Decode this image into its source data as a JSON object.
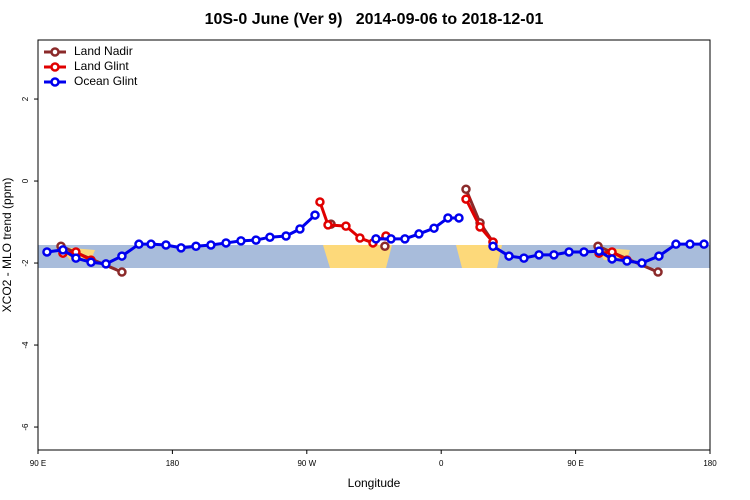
{
  "chart_data": {
    "type": "line",
    "title": "10S-0 June (Ver 9)   2014-09-06 to 2018-12-01",
    "x_label": "Longitude",
    "y_label": "XCO2 - MLO trend (ppm)",
    "xlim": [
      90,
      540
    ],
    "xticks": [
      {
        "value": 90,
        "label": "90 E"
      },
      {
        "value": 180,
        "label": "180"
      },
      {
        "value": 270,
        "label": "90 W"
      },
      {
        "value": 360,
        "label": "0"
      },
      {
        "value": 450,
        "label": "90 E"
      },
      {
        "value": 540,
        "label": "180"
      }
    ],
    "ylim": [
      -6.56,
      3.44
    ],
    "yticks": [
      -6,
      -4,
      -2,
      0,
      2
    ],
    "legend": "top-left",
    "series": [
      {
        "name": "Land Nadir",
        "color": "#8b2a2a",
        "x": [
          105.4,
          146.2,
          null,
          286.2,
          null,
          322.3,
          null,
          376.6,
          386.0,
          394.7,
          null,
          465.0,
          505.2
        ],
        "values": [
          -1.59,
          -2.22,
          null,
          -1.05,
          null,
          -1.59,
          null,
          -0.2,
          -1.02,
          -1.49,
          null,
          -1.59,
          -2.22
        ]
      },
      {
        "name": "Land Glint",
        "color": "#e00000",
        "x": [
          106.7,
          115.4,
          125.5,
          null,
          278.8,
          284.2,
          296.2,
          305.6,
          314.3,
          323.0,
          null,
          376.6,
          386.0,
          394.7,
          null,
          465.7,
          474.4,
          484.4
        ],
        "values": [
          -1.76,
          -1.73,
          -1.93,
          null,
          -0.51,
          -1.07,
          -1.1,
          -1.39,
          -1.51,
          -1.34,
          null,
          -0.44,
          -1.12,
          -1.49,
          null,
          -1.76,
          -1.73,
          -1.93
        ]
      },
      {
        "name": "Ocean Glint",
        "color": "#0000ee",
        "x": [
          96.0,
          106.7,
          115.4,
          125.5,
          135.5,
          146.2,
          157.6,
          165.7,
          175.7,
          185.8,
          195.8,
          205.8,
          215.9,
          225.9,
          236.0,
          245.3,
          256.1,
          265.4,
          275.5,
          null,
          316.3,
          326.4,
          335.7,
          345.1,
          355.2,
          364.5,
          371.9,
          null,
          394.7,
          405.4,
          415.4,
          425.5,
          435.5,
          445.6,
          455.6,
          465.7,
          474.4,
          484.4,
          494.4,
          505.8,
          517.2,
          526.6,
          536.0
        ],
        "values": [
          -1.73,
          -1.68,
          -1.88,
          -1.98,
          -2.02,
          -1.83,
          -1.54,
          -1.54,
          -1.56,
          -1.63,
          -1.59,
          -1.56,
          -1.51,
          -1.46,
          -1.44,
          -1.37,
          -1.34,
          -1.17,
          -0.83,
          null,
          -1.41,
          -1.41,
          -1.41,
          -1.29,
          -1.15,
          -0.9,
          -0.9,
          null,
          -1.59,
          -1.83,
          -1.88,
          -1.8,
          -1.8,
          -1.73,
          -1.73,
          -1.71,
          -1.9,
          -1.95,
          -2.0,
          -1.83,
          -1.54,
          -1.54,
          -1.54
        ]
      }
    ]
  }
}
